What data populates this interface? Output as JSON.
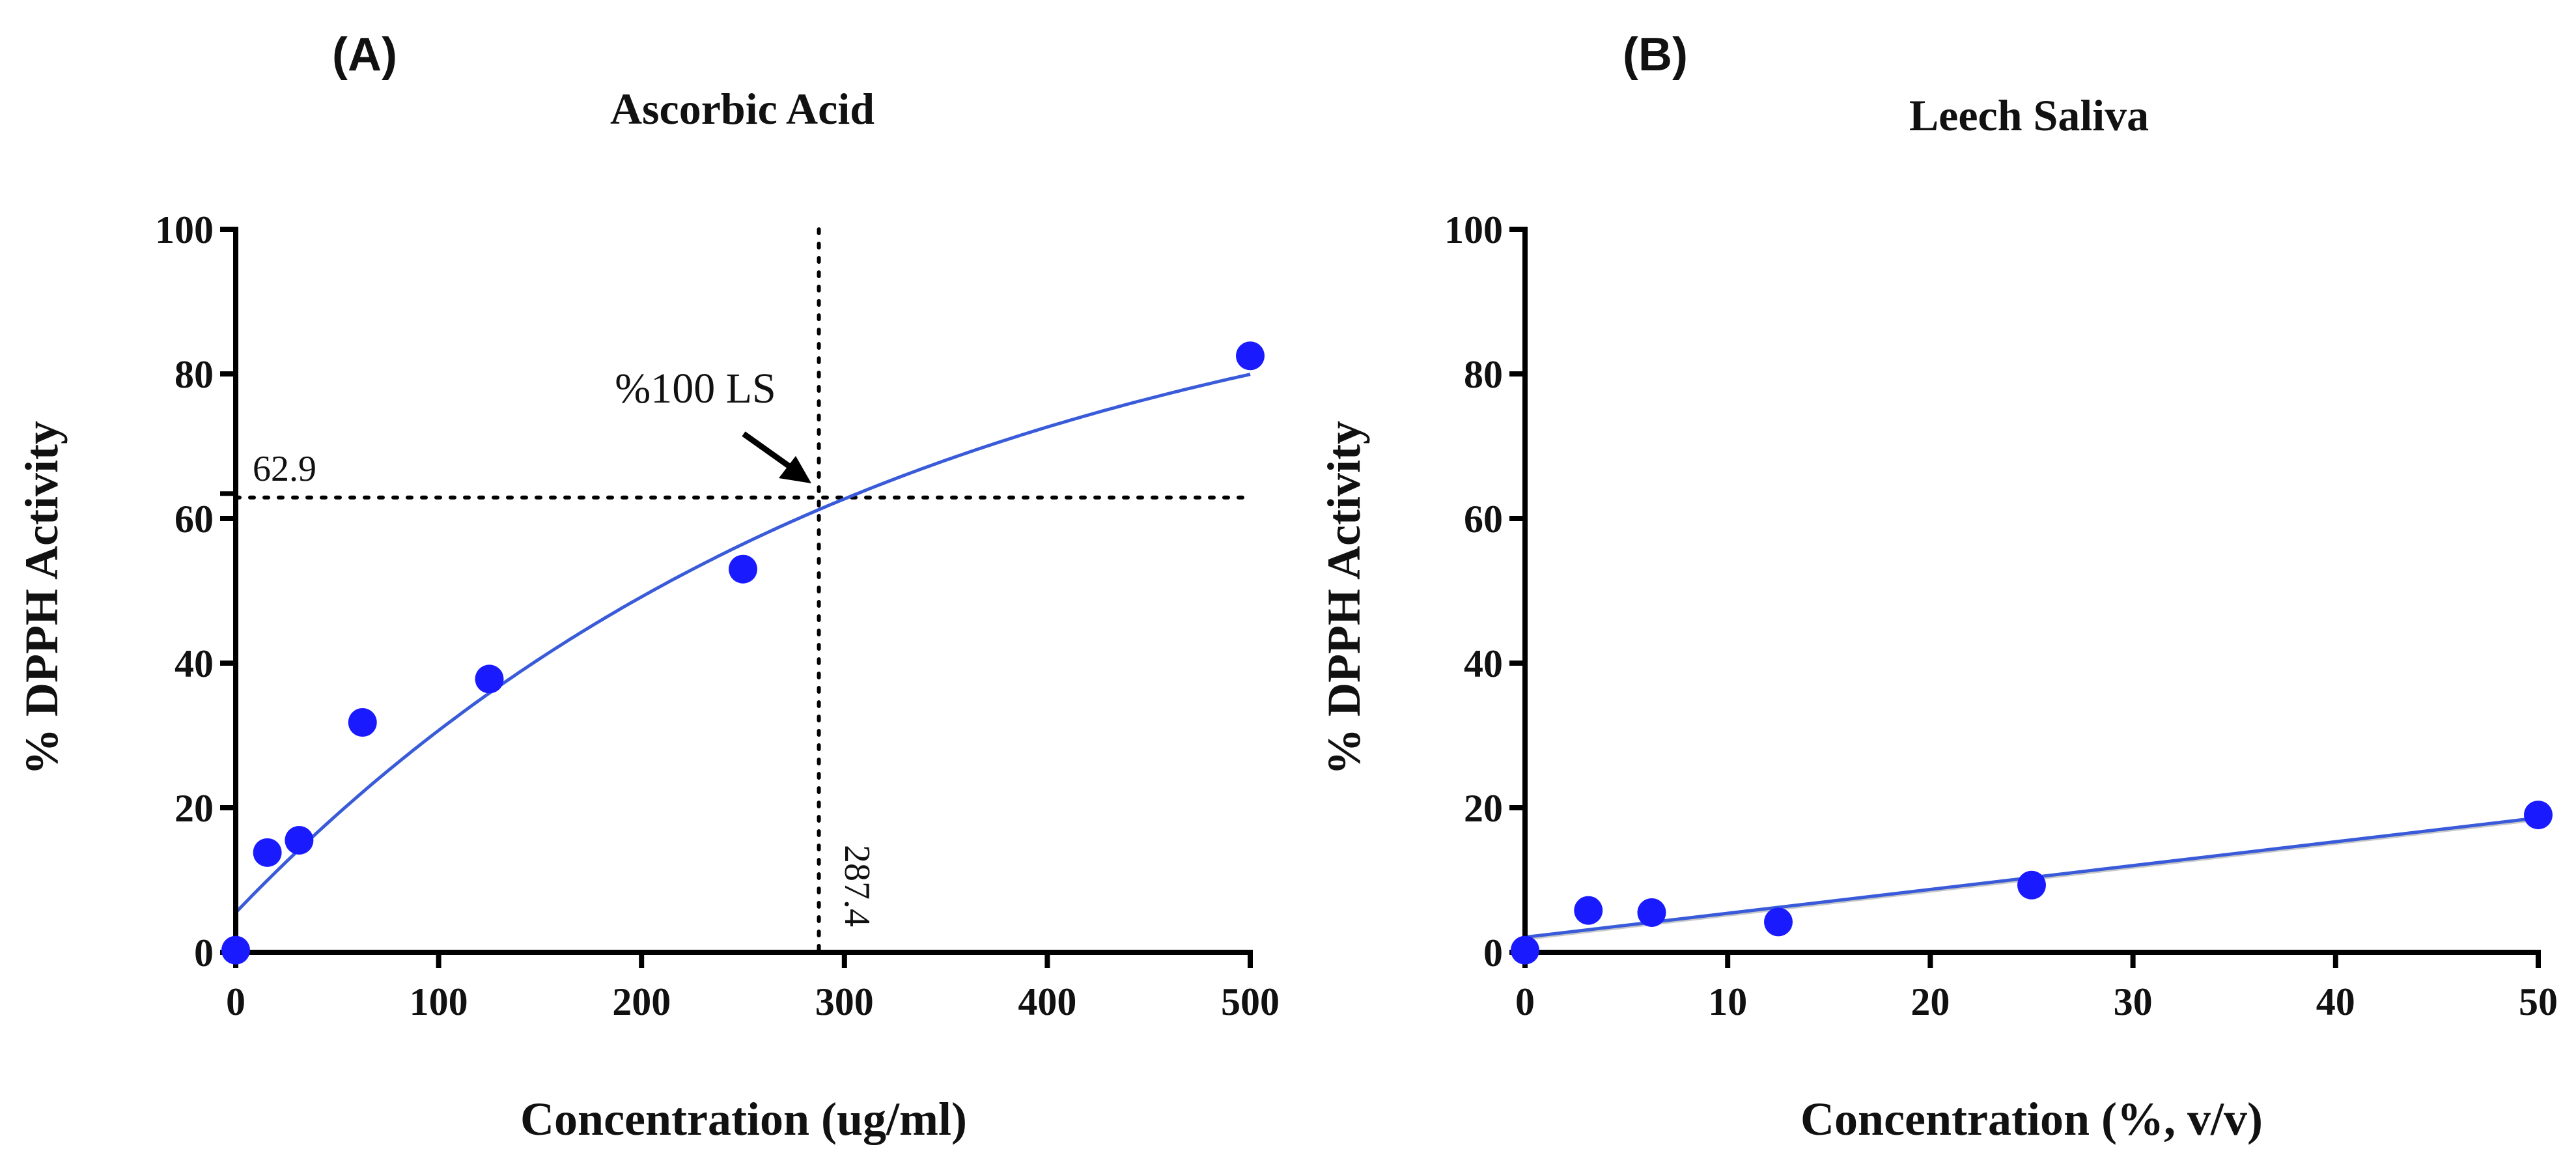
{
  "chart_data": [
    {
      "type": "scatter",
      "panel_label": "(A)",
      "title": "Ascorbic Acid",
      "xlabel": "Concentration (ug/ml)",
      "ylabel": "% DPPH Activity",
      "xlim": [
        0,
        500
      ],
      "ylim": [
        0,
        100
      ],
      "x_ticks": [
        0,
        100,
        200,
        300,
        400,
        500
      ],
      "y_ticks": [
        0,
        20,
        40,
        60,
        80,
        100
      ],
      "grid": false,
      "marker_color": "#1a1aff",
      "line_color": "#3a5bd9",
      "points": [
        {
          "x": 0,
          "y": 0.3
        },
        {
          "x": 15.6,
          "y": 13.8
        },
        {
          "x": 31.25,
          "y": 15.5
        },
        {
          "x": 62.5,
          "y": 31.8
        },
        {
          "x": 125,
          "y": 37.8
        },
        {
          "x": 250,
          "y": 53
        },
        {
          "x": 500,
          "y": 82.5
        }
      ],
      "fit_curve": {
        "model": "one-phase association",
        "y0": 5.5,
        "plateau": 100,
        "k": 0.0031,
        "x_from": 0,
        "x_to": 500
      },
      "reference_lines": {
        "x": 287.4,
        "y": 62.9
      },
      "annotations": {
        "y_value_label": "62.9",
        "x_value_label": "287.4",
        "arrow_label": "%100 LS"
      }
    },
    {
      "type": "scatter",
      "panel_label": "(B)",
      "title": "Leech Saliva",
      "xlabel": "Concentration (%, v/v)",
      "ylabel": "% DPPH Activity",
      "xlim": [
        0,
        50
      ],
      "ylim": [
        0,
        100
      ],
      "x_ticks": [
        0,
        10,
        20,
        30,
        40,
        50
      ],
      "y_ticks": [
        0,
        20,
        40,
        60,
        80,
        100
      ],
      "grid": false,
      "marker_color": "#1a1aff",
      "line_color": "#3a5bd9",
      "points": [
        {
          "x": 0,
          "y": 0.3
        },
        {
          "x": 3.125,
          "y": 5.8
        },
        {
          "x": 6.25,
          "y": 5.5
        },
        {
          "x": 12.5,
          "y": 4.2
        },
        {
          "x": 25,
          "y": 9.3
        },
        {
          "x": 50,
          "y": 19
        }
      ],
      "fit_line": {
        "model": "linear",
        "slope": 0.33,
        "intercept": 2.1,
        "x_from": 0,
        "x_to": 50
      }
    }
  ]
}
